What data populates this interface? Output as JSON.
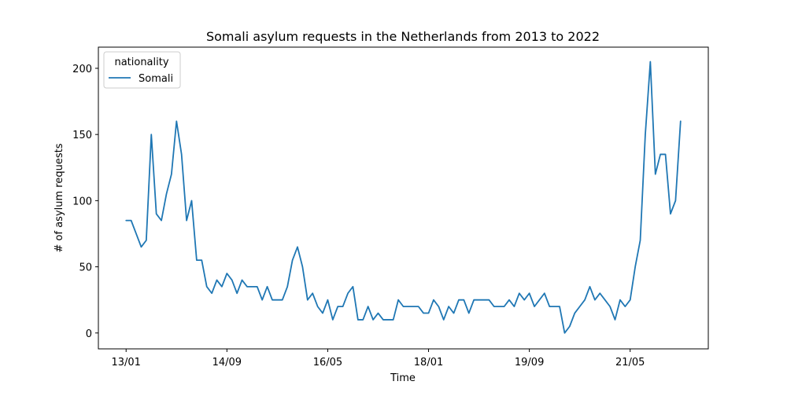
{
  "chart_data": {
    "type": "line",
    "title": "Somali asylum requests in the Netherlands from 2013 to 2022",
    "xlabel": "Time",
    "ylabel": "# of asylum requests",
    "x_tick_labels": [
      "13/01",
      "14/09",
      "16/05",
      "18/01",
      "19/09",
      "21/05"
    ],
    "x_tick_positions": [
      0,
      20,
      40,
      60,
      80,
      100
    ],
    "y_ticks": [
      0,
      50,
      100,
      150,
      200
    ],
    "ylim": [
      -12,
      216
    ],
    "xlim": [
      -5.5,
      115.5
    ],
    "grid": false,
    "legend": {
      "title": "nationality",
      "placement": "top-left"
    },
    "colors": {
      "series": "#1f77b4"
    },
    "series": [
      {
        "name": "Somali",
        "x": [
          0,
          1,
          2,
          3,
          4,
          5,
          6,
          7,
          8,
          9,
          10,
          11,
          12,
          13,
          14,
          15,
          16,
          17,
          18,
          19,
          20,
          21,
          22,
          23,
          24,
          25,
          26,
          27,
          28,
          29,
          30,
          31,
          32,
          33,
          34,
          35,
          36,
          37,
          38,
          39,
          40,
          41,
          42,
          43,
          44,
          45,
          46,
          47,
          48,
          49,
          50,
          51,
          52,
          53,
          54,
          55,
          56,
          57,
          58,
          59,
          60,
          61,
          62,
          63,
          64,
          65,
          66,
          67,
          68,
          69,
          70,
          71,
          72,
          73,
          74,
          75,
          76,
          77,
          78,
          79,
          80,
          81,
          82,
          83,
          84,
          85,
          86,
          87,
          88,
          89,
          90,
          91,
          92,
          93,
          94,
          95,
          96,
          97,
          98,
          99,
          100,
          101,
          102,
          103,
          104,
          105,
          106,
          107,
          108,
          109,
          110
        ],
        "values": [
          85,
          85,
          75,
          65,
          70,
          150,
          90,
          85,
          105,
          120,
          160,
          135,
          85,
          100,
          55,
          55,
          35,
          30,
          40,
          35,
          45,
          40,
          30,
          40,
          35,
          35,
          35,
          25,
          35,
          25,
          25,
          25,
          35,
          55,
          65,
          50,
          25,
          30,
          20,
          15,
          25,
          10,
          20,
          20,
          30,
          35,
          10,
          10,
          20,
          10,
          15,
          10,
          10,
          10,
          25,
          20,
          20,
          20,
          20,
          15,
          15,
          25,
          20,
          10,
          20,
          15,
          25,
          25,
          15,
          25,
          25,
          25,
          25,
          20,
          20,
          20,
          25,
          20,
          30,
          25,
          30,
          20,
          25,
          30,
          20,
          20,
          20,
          0,
          5,
          15,
          20,
          25,
          35,
          25,
          30,
          25,
          20,
          10,
          25,
          20,
          25,
          50,
          70,
          150,
          205,
          120,
          135,
          135,
          90,
          100,
          160
        ]
      }
    ]
  }
}
